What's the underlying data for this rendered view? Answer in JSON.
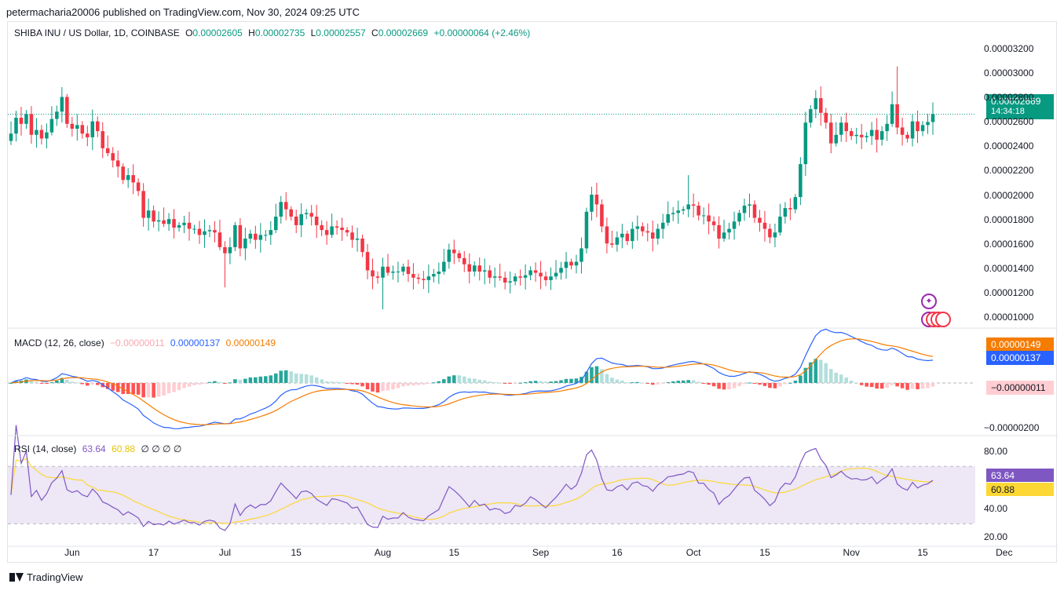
{
  "header": {
    "title": "petermacharia20006 published on TradingView.com, Nov 30, 2024 09:25 UTC"
  },
  "legend_main": {
    "symbol": "SHIBA INU / US Dollar, 1D, COINBASE",
    "o_label": "O",
    "o_value": "0.00002605",
    "h_label": "H",
    "h_value": "0.00002735",
    "l_label": "L",
    "l_value": "0.00002557",
    "c_label": "C",
    "c_value": "0.00002669",
    "change": "+0.00000064 (+2.46%)"
  },
  "legend_macd": {
    "name": "MACD (12, 26, close)",
    "hist": "−0.00000011",
    "macd": "0.00000137",
    "signal": "0.00000149"
  },
  "legend_rsi": {
    "name": "RSI (14, close)",
    "rsi": "63.64",
    "ma": "60.88",
    "placeholders": "∅ ∅ ∅ ∅"
  },
  "tags": {
    "price": "0.00002669",
    "countdown": "14:34:18",
    "signal": "0.00000149",
    "macd": "0.00000137",
    "hist": "−0.00000011",
    "rsi": "63.64",
    "rsi_ma": "60.88"
  },
  "footer": {
    "brand": "TradingView"
  },
  "colors": {
    "up": "#089981",
    "down": "#f23645",
    "macd": "#2962ff",
    "signal": "#f57c00",
    "rsi": "#7e57c2",
    "rsi_ma": "#fdd835",
    "hist_up_strong": "#26a69a",
    "hist_up_weak": "#b2dfdb",
    "hist_down_strong": "#ff5252",
    "hist_down_weak": "#ffcdd2",
    "rsi_band": "#ede7f6"
  },
  "chart_data": [
    {
      "type": "candlestick",
      "title": "SHIBA INU / US Dollar, 1D, COINBASE",
      "y_ticks": [
        "0.00003200",
        "0.00003000",
        "0.00002800",
        "0.00002600",
        "0.00002400",
        "0.00002200",
        "0.00002000",
        "0.00001800",
        "0.00001600",
        "0.00001400",
        "0.00001200",
        "0.00001000"
      ],
      "y_tick_values": [
        32.0,
        30.0,
        28.0,
        26.0,
        24.0,
        22.0,
        20.0,
        18.0,
        16.0,
        14.0,
        12.0,
        10.0
      ],
      "y_unit_scale": "1e-6 USD",
      "x_ticks": [
        "Jun",
        "17",
        "Jul",
        "15",
        "Aug",
        "15",
        "Sep",
        "16",
        "Oct",
        "15",
        "Nov",
        "15",
        "Dec"
      ],
      "x_tick_dates": [
        "2024-06-01",
        "2024-06-17",
        "2024-07-01",
        "2024-07-15",
        "2024-08-01",
        "2024-08-15",
        "2024-09-01",
        "2024-09-16",
        "2024-10-01",
        "2024-10-15",
        "2024-11-01",
        "2024-11-15",
        "2024-12-01"
      ],
      "ylim": [
        9.3,
        33.6
      ],
      "first_date": "2024-05-20",
      "last_price": 26.69,
      "closes": [
        25.1,
        26.4,
        25.9,
        26.7,
        25.0,
        25.4,
        24.7,
        25.2,
        26.3,
        26.9,
        28.1,
        25.9,
        25.5,
        25.8,
        25.1,
        24.8,
        26.1,
        25.3,
        23.9,
        23.5,
        22.9,
        22.4,
        21.3,
        21.7,
        21.1,
        20.4,
        18.2,
        18.8,
        17.9,
        18.0,
        17.7,
        18.1,
        17.4,
        17.6,
        17.8,
        17.3,
        17.3,
        16.8,
        17.1,
        17.2,
        17.0,
        15.8,
        15.3,
        15.8,
        17.6,
        15.7,
        16.5,
        16.9,
        16.4,
        16.8,
        16.8,
        17.2,
        18.3,
        19.5,
        18.9,
        18.3,
        17.6,
        18.5,
        18.6,
        18.3,
        17.6,
        17.2,
        16.8,
        17.5,
        17.4,
        17.2,
        17.0,
        16.4,
        16.5,
        15.4,
        13.9,
        13.4,
        13.3,
        14.2,
        13.7,
        13.8,
        13.8,
        14.2,
        13.6,
        13.3,
        13.2,
        13.1,
        13.4,
        13.6,
        13.8,
        14.6,
        15.6,
        15.3,
        14.9,
        14.4,
        13.8,
        14.3,
        13.8,
        13.9,
        13.3,
        13.4,
        13.3,
        12.9,
        13.0,
        13.4,
        13.3,
        13.5,
        13.9,
        13.7,
        13.4,
        13.1,
        13.4,
        13.7,
        14.1,
        14.6,
        14.3,
        14.6,
        15.7,
        18.7,
        20.1,
        19.3,
        17.5,
        16.1,
        16.0,
        16.6,
        16.9,
        16.3,
        17.3,
        17.5,
        17.1,
        17.0,
        16.5,
        17.3,
        17.8,
        18.5,
        18.6,
        18.8,
        18.9,
        19.3,
        19.2,
        18.4,
        18.4,
        17.9,
        17.6,
        16.5,
        17.0,
        17.3,
        17.9,
        18.6,
        19.2,
        19.3,
        18.2,
        17.8,
        17.3,
        16.6,
        17.0,
        18.3,
        19.0,
        18.9,
        19.9,
        22.6,
        26.0,
        27.1,
        28.0,
        26.8,
        26.0,
        24.3,
        25.0,
        26.0,
        25.3,
        24.9,
        25.0,
        24.8,
        24.9,
        25.4,
        24.6,
        25.3,
        25.9,
        27.5,
        25.6,
        25.0,
        24.7,
        26.1,
        25.3,
        25.8,
        26.05,
        26.69
      ],
      "pane_note": "daily OHLC; opens are previous closes, highs/lows approximated"
    },
    {
      "type": "line+bar",
      "title": "MACD (12, 26, close)",
      "y_ticks": [
        "−0.00000200"
      ],
      "y_tick_values": [
        -2.0
      ],
      "ylim": [
        -2.25,
        2.35
      ],
      "series": [
        {
          "name": "MACD",
          "values": "computed from closes (EMA12 − EMA26)"
        },
        {
          "name": "Signal",
          "values": "EMA9 of MACD"
        },
        {
          "name": "Histogram",
          "values": "MACD − Signal"
        }
      ],
      "last_values": {
        "macd": 1.37,
        "signal": 1.49,
        "hist": -0.11
      },
      "y_unit_scale": "1e-6 USD"
    },
    {
      "type": "line",
      "title": "RSI (14, close)",
      "y_ticks": [
        "80.00",
        "40.00",
        "20.00"
      ],
      "y_tick_values": [
        80,
        40,
        20
      ],
      "ylim": [
        14,
        90
      ],
      "bands": [
        30,
        50,
        70
      ],
      "last_values": {
        "rsi": 63.64,
        "ma": 60.88
      }
    }
  ]
}
